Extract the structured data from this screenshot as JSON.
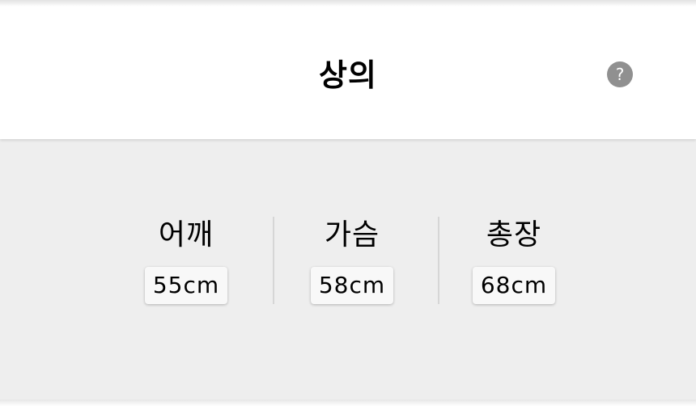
{
  "header": {
    "title": "상의",
    "help_icon": "question-circle-icon",
    "help_glyph": "?"
  },
  "measurements": [
    {
      "label": "어깨",
      "value": "55cm"
    },
    {
      "label": "가슴",
      "value": "58cm"
    },
    {
      "label": "총장",
      "value": "68cm"
    }
  ],
  "colors": {
    "panel_background": "#eeeeee",
    "help_icon": "#909090",
    "value_chip": "#f8f8f8"
  }
}
